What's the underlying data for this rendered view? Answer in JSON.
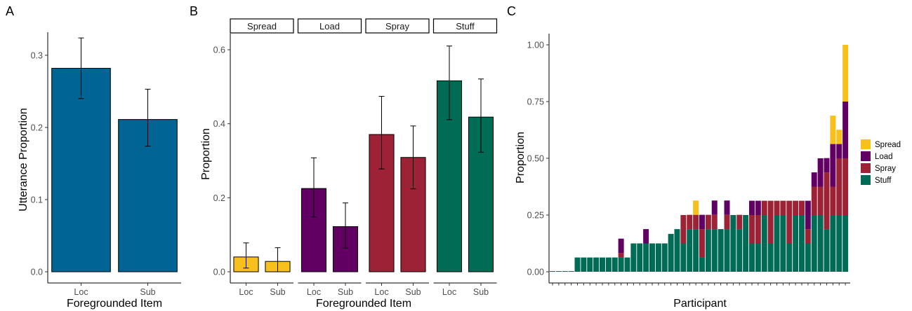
{
  "colors": {
    "panel_a_bar": "#006494",
    "Spread": "#F8C01C",
    "Load": "#610062",
    "Spray": "#9E2236",
    "Stuff": "#006C55"
  },
  "chart_data": [
    {
      "panel_label": "A",
      "type": "bar",
      "categories": [
        "Loc",
        "Sub"
      ],
      "values": [
        0.282,
        0.211
      ],
      "error_low": [
        0.24,
        0.174
      ],
      "error_high": [
        0.324,
        0.253
      ],
      "xlabel": "Foregrounded Item",
      "ylabel": "Utterance Proportion",
      "ylim": [
        0,
        0.33
      ],
      "yticks": [
        0.0,
        0.1,
        0.2,
        0.3
      ],
      "ytick_labels": [
        "0.0",
        "0.1",
        "0.2",
        "0.3"
      ],
      "grid": false
    },
    {
      "panel_label": "B",
      "type": "bar",
      "facets": [
        "Spread",
        "Load",
        "Spray",
        "Stuff"
      ],
      "categories": [
        "Loc",
        "Sub"
      ],
      "series": [
        {
          "facet": "Spread",
          "values": [
            0.04,
            0.028
          ],
          "error_low": [
            0.01,
            0.0
          ],
          "error_high": [
            0.078,
            0.065
          ]
        },
        {
          "facet": "Load",
          "values": [
            0.225,
            0.122
          ],
          "error_low": [
            0.148,
            0.064
          ],
          "error_high": [
            0.308,
            0.186
          ]
        },
        {
          "facet": "Spray",
          "values": [
            0.371,
            0.309
          ],
          "error_low": [
            0.278,
            0.224
          ],
          "error_high": [
            0.474,
            0.394
          ]
        },
        {
          "facet": "Stuff",
          "values": [
            0.516,
            0.418
          ],
          "error_low": [
            0.411,
            0.323
          ],
          "error_high": [
            0.61,
            0.521
          ]
        }
      ],
      "xlabel": "Foregrounded Item",
      "ylabel": "Proportion",
      "ylim": [
        0,
        0.64
      ],
      "yticks": [
        0.0,
        0.2,
        0.4,
        0.6
      ],
      "ytick_labels": [
        "0.0",
        "0.2",
        "0.4",
        "0.6"
      ],
      "grid": false
    },
    {
      "panel_label": "C",
      "type": "bar",
      "stacked": true,
      "xlabel": "Participant",
      "ylabel": "Proportion",
      "ylim": [
        0,
        1.03
      ],
      "yticks": [
        0.0,
        0.25,
        0.5,
        0.75,
        1.0
      ],
      "ytick_labels": [
        "0.00",
        "0.25",
        "0.50",
        "0.75",
        "1.00"
      ],
      "legend_position": "right",
      "legend": [
        "Spread",
        "Load",
        "Spray",
        "Stuff"
      ],
      "participant_count": 48,
      "series": [
        {
          "name": "Stuff",
          "values": [
            0.003,
            0.003,
            0.003,
            0.003,
            0.063,
            0.063,
            0.063,
            0.063,
            0.063,
            0.063,
            0.063,
            0.063,
            0.063,
            0.125,
            0.125,
            0.125,
            0.125,
            0.125,
            0.125,
            0.167,
            0.188,
            0.125,
            0.188,
            0.188,
            0.063,
            0.188,
            0.188,
            0.188,
            0.188,
            0.25,
            0.188,
            0.25,
            0.125,
            0.125,
            0.25,
            0.125,
            0.25,
            0.25,
            0.125,
            0.25,
            0.25,
            0.125,
            0.25,
            0.25,
            0.188,
            0.25,
            0.25,
            0.25
          ]
        },
        {
          "name": "Spray",
          "values": [
            0,
            0,
            0,
            0,
            0,
            0,
            0,
            0,
            0,
            0,
            0,
            0.02,
            0,
            0,
            0,
            0,
            0,
            0,
            0,
            0,
            0,
            0.125,
            0.063,
            0.063,
            0.125,
            0.063,
            0.063,
            0,
            0.063,
            0,
            0.063,
            0,
            0.125,
            0.125,
            0.063,
            0.188,
            0.063,
            0.063,
            0.188,
            0.063,
            0.063,
            0.063,
            0.125,
            0.125,
            0.25,
            0.125,
            0.25,
            0.25
          ]
        },
        {
          "name": "Load",
          "values": [
            0,
            0,
            0,
            0,
            0,
            0,
            0,
            0,
            0,
            0,
            0,
            0.063,
            0,
            0,
            0,
            0.063,
            0,
            0,
            0,
            0,
            0,
            0,
            0,
            0,
            0.063,
            0,
            0.063,
            0,
            0.063,
            0,
            0,
            0,
            0.063,
            0.063,
            0,
            0,
            0,
            0,
            0,
            0,
            0,
            0.125,
            0.063,
            0.125,
            0.063,
            0.188,
            0.063,
            0.25
          ]
        },
        {
          "name": "Spread",
          "values": [
            0,
            0,
            0,
            0,
            0,
            0,
            0,
            0,
            0,
            0,
            0,
            0,
            0,
            0,
            0,
            0,
            0,
            0,
            0,
            0,
            0,
            0,
            0,
            0.063,
            0,
            0,
            0,
            0,
            0,
            0,
            0,
            0,
            0,
            0,
            0,
            0,
            0,
            0,
            0,
            0,
            0,
            0,
            0,
            0,
            0,
            0.125,
            0.063,
            0.25
          ]
        }
      ],
      "grid": false
    }
  ]
}
